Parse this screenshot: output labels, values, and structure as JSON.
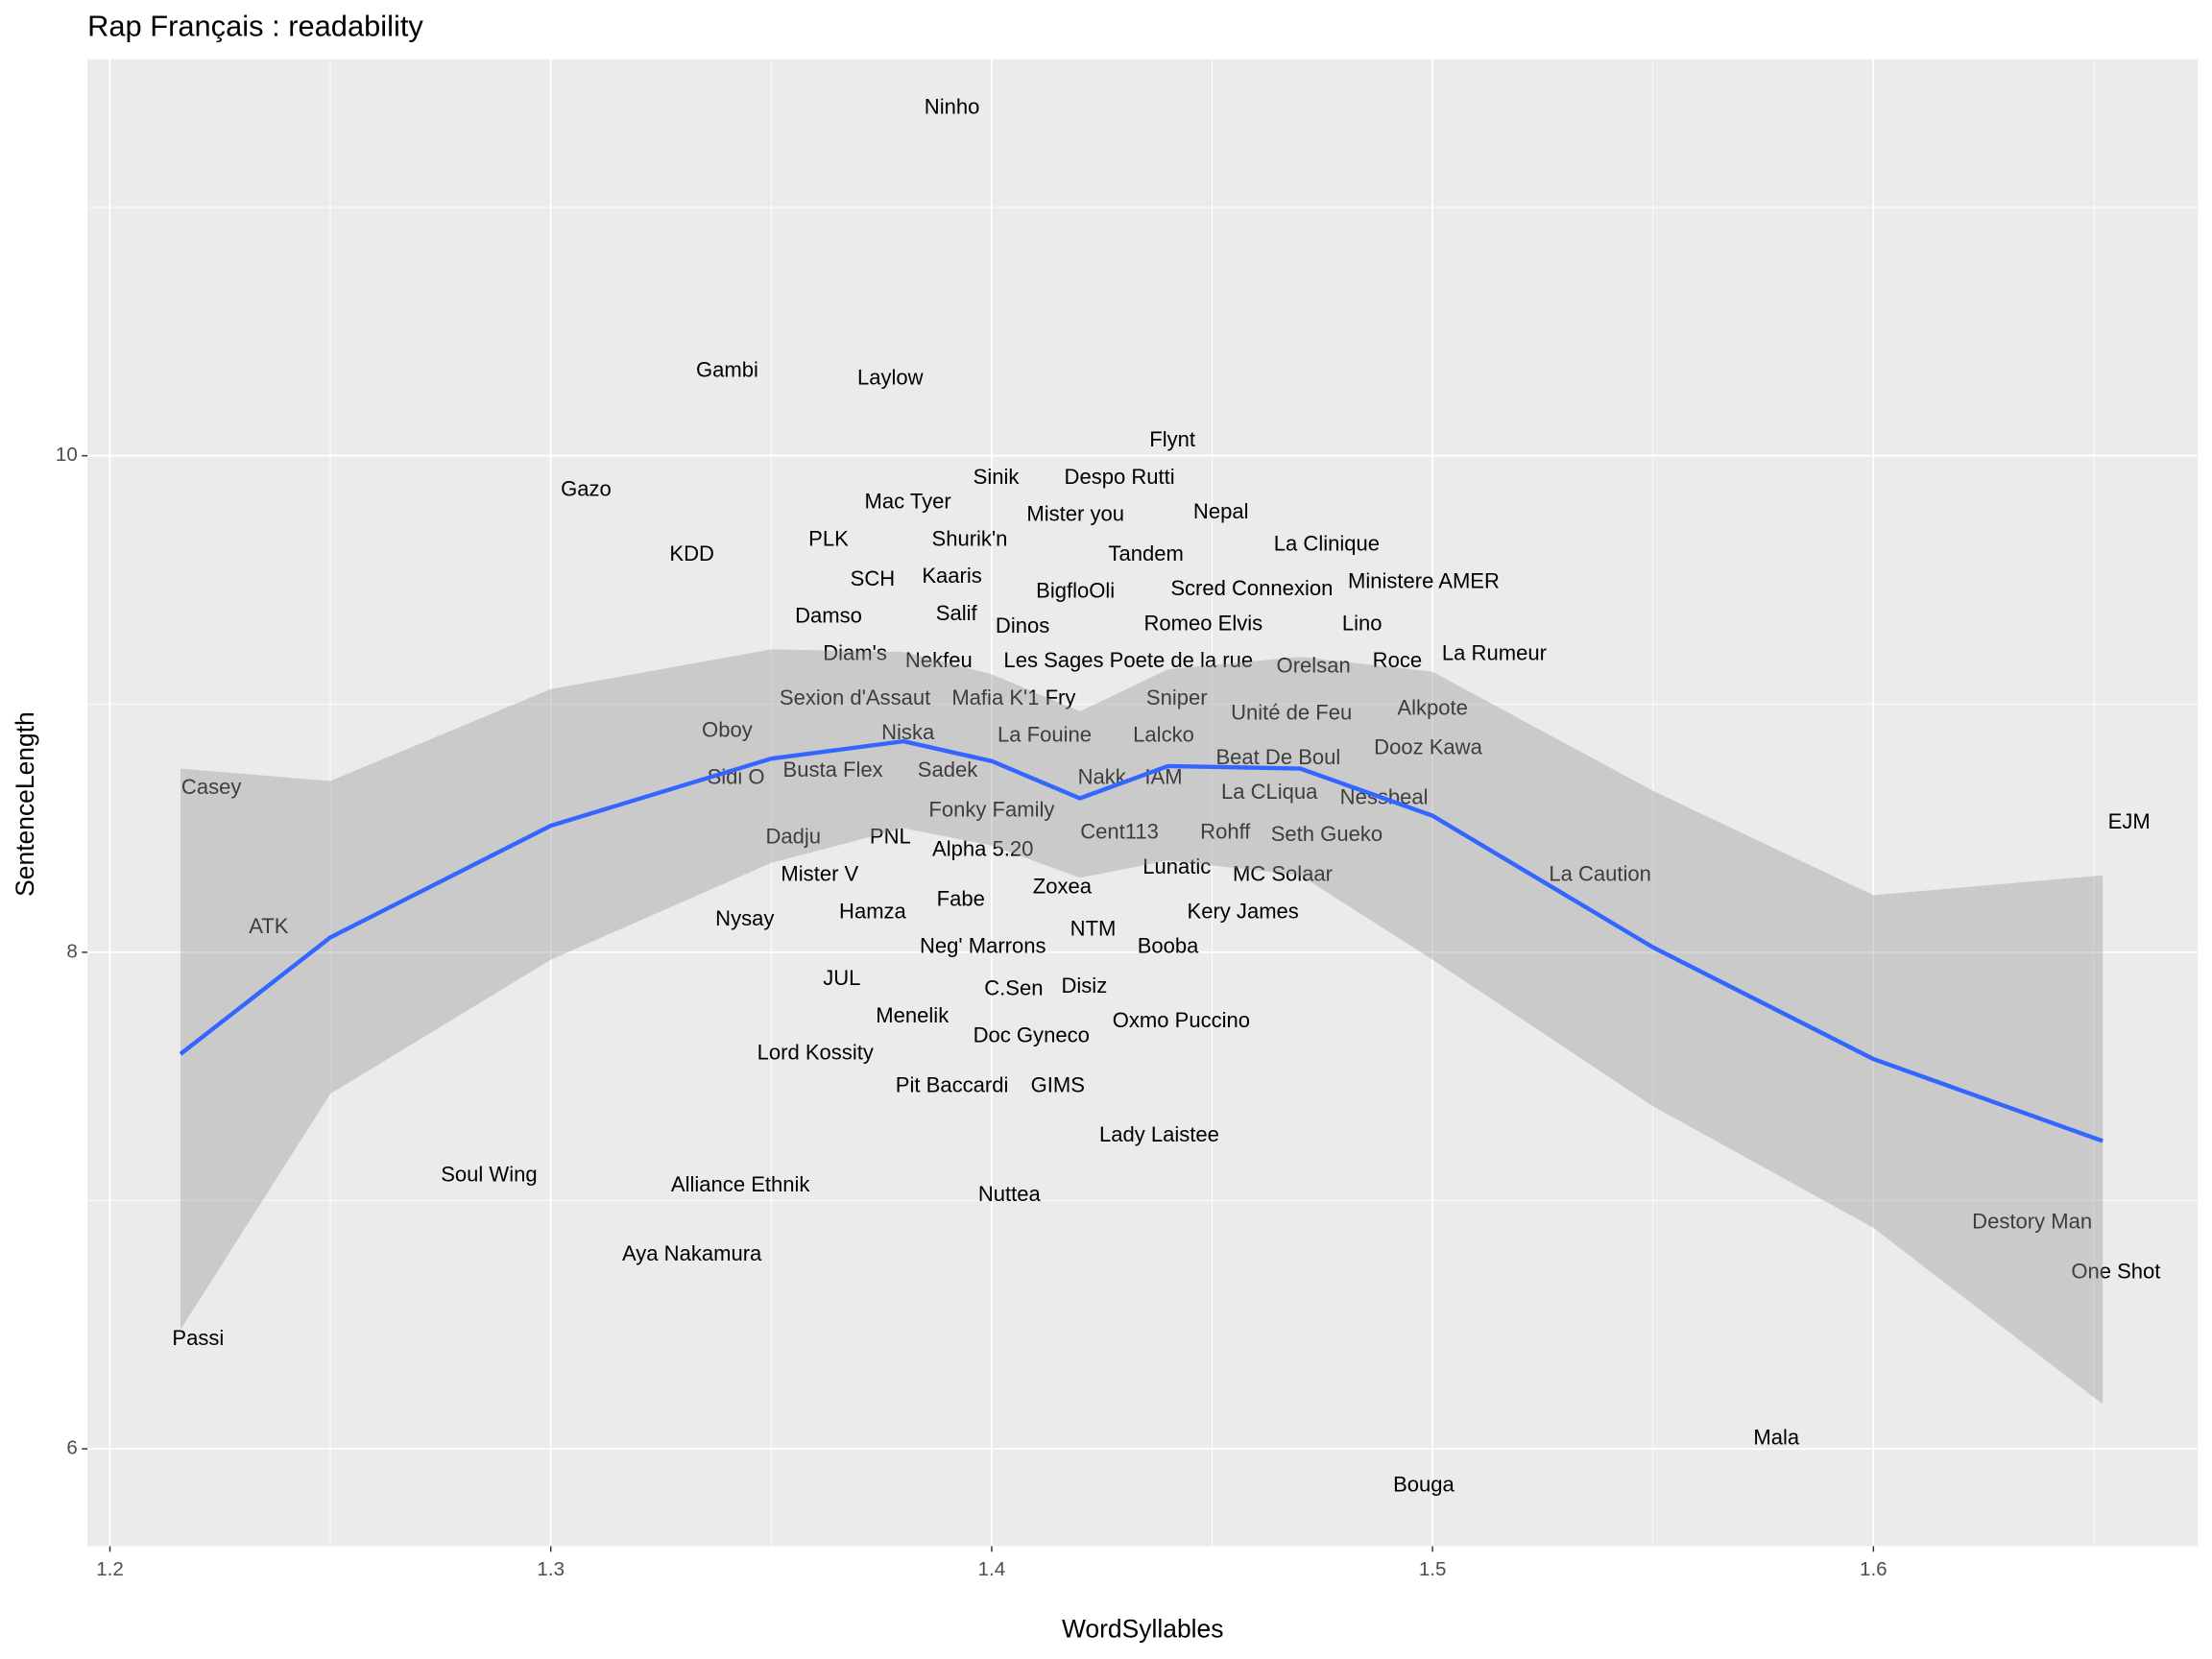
{
  "chart_data": {
    "type": "scatter",
    "title": "Rap Français :  readability",
    "x_label": "WordSyllables",
    "y_label": "SentenceLength",
    "xlim": [
      1.1949,
      1.6736
    ],
    "ylim": [
      5.608,
      11.597
    ],
    "xticks": [
      1.2,
      1.3,
      1.4,
      1.5,
      1.6
    ],
    "yticks": [
      6,
      8,
      10
    ],
    "xminor": [
      1.25,
      1.35,
      1.45,
      1.55,
      1.65
    ],
    "yminor": [
      7,
      9,
      11
    ],
    "grid": true,
    "panel_color": "#ebebeb",
    "text_color": "#000000",
    "labels": [
      "Ninho",
      "Gambi",
      "Laylow",
      "Flynt",
      "Sinik",
      "Despo Rutti",
      "Gazo",
      "Mac Tyer",
      "Mister you",
      "Nepal",
      "Shurik'n",
      "PLK",
      "La Clinique",
      "Tandem",
      "KDD",
      "SCH",
      "Kaaris",
      "Ministere AMER",
      "Scred Connexion",
      "BigfloOli",
      "Damso",
      "Salif",
      "Dinos",
      "Romeo Elvis",
      "Lino",
      "Diam's",
      "Nekfeu",
      "Les Sages Poete de la rue",
      "Orelsan",
      "Roce",
      "La Rumeur",
      "Sexion d'Assaut",
      "Mafia K'1 Fry",
      "Sniper",
      "Unité de Feu",
      "Alkpote",
      "Oboy",
      "Niska",
      "La Fouine",
      "Lalcko",
      "Dooz Kawa",
      "Beat De Boul",
      "Casey",
      "Sidi O",
      "Busta Flex",
      "Sadek",
      "Nakk",
      "IAM",
      "La CLiqua",
      "Nessbeal",
      "Fonky Family",
      "EJM",
      "Dadju",
      "PNL",
      "Cent113",
      "Rohff",
      "Seth Gueko",
      "Alpha 5.20",
      "Lunatic",
      "MC Solaar",
      "La Caution",
      "Mister V",
      "Zoxea",
      "Fabe",
      "Hamza",
      "Kery James",
      "Nysay",
      "ATK",
      "NTM",
      "Neg' Marrons",
      "Booba",
      "JUL",
      "C.Sen",
      "Disiz",
      "Menelik",
      "Oxmo Puccino",
      "Doc Gyneco",
      "Lord Kossity",
      "Pit Baccardi",
      "GIMS",
      "Lady Laistee",
      "Soul Wing",
      "Alliance Ethnik",
      "Nuttea",
      "Aya Nakamura",
      "Destory Man",
      "One Shot",
      "Passi",
      "Mala",
      "Bouga"
    ],
    "x": [
      1.391,
      1.34,
      1.377,
      1.441,
      1.401,
      1.429,
      1.308,
      1.381,
      1.419,
      1.452,
      1.395,
      1.363,
      1.476,
      1.435,
      1.332,
      1.373,
      1.391,
      1.498,
      1.459,
      1.419,
      1.363,
      1.392,
      1.407,
      1.448,
      1.484,
      1.369,
      1.388,
      1.431,
      1.473,
      1.492,
      1.514,
      1.369,
      1.405,
      1.442,
      1.468,
      1.5,
      1.34,
      1.381,
      1.412,
      1.439,
      1.499,
      1.465,
      1.223,
      1.342,
      1.364,
      1.39,
      1.425,
      1.439,
      1.463,
      1.489,
      1.4,
      1.658,
      1.355,
      1.377,
      1.429,
      1.453,
      1.476,
      1.398,
      1.442,
      1.466,
      1.538,
      1.361,
      1.416,
      1.393,
      1.373,
      1.457,
      1.344,
      1.236,
      1.423,
      1.398,
      1.44,
      1.366,
      1.405,
      1.421,
      1.382,
      1.443,
      1.409,
      1.36,
      1.391,
      1.415,
      1.438,
      1.286,
      1.343,
      1.404,
      1.332,
      1.636,
      1.655,
      1.22,
      1.578,
      1.498
    ],
    "y": [
      11.4,
      10.34,
      10.31,
      10.06,
      9.91,
      9.91,
      9.86,
      9.81,
      9.76,
      9.77,
      9.66,
      9.66,
      9.64,
      9.6,
      9.6,
      9.5,
      9.51,
      9.49,
      9.46,
      9.45,
      9.35,
      9.36,
      9.31,
      9.32,
      9.32,
      9.2,
      9.17,
      9.17,
      9.15,
      9.17,
      9.2,
      9.02,
      9.02,
      9.02,
      8.96,
      8.98,
      8.89,
      8.88,
      8.87,
      8.87,
      8.82,
      8.78,
      8.66,
      8.7,
      8.73,
      8.73,
      8.7,
      8.7,
      8.64,
      8.62,
      8.57,
      8.52,
      8.46,
      8.46,
      8.48,
      8.48,
      8.47,
      8.41,
      8.34,
      8.31,
      8.31,
      8.31,
      8.26,
      8.21,
      8.16,
      8.16,
      8.13,
      8.1,
      8.09,
      8.02,
      8.02,
      7.89,
      7.85,
      7.86,
      7.74,
      7.72,
      7.66,
      7.59,
      7.46,
      7.46,
      7.26,
      7.1,
      7.06,
      7.02,
      6.78,
      6.91,
      6.71,
      6.44,
      6.04,
      5.85
    ],
    "smooth": {
      "color": "#3366ff",
      "ribbon_color": "#999999",
      "x": [
        1.216,
        1.25,
        1.3,
        1.35,
        1.38,
        1.4,
        1.42,
        1.44,
        1.47,
        1.5,
        1.55,
        1.6,
        1.652
      ],
      "y": [
        7.59,
        8.06,
        8.51,
        8.78,
        8.85,
        8.77,
        8.62,
        8.75,
        8.74,
        8.55,
        8.02,
        7.57,
        7.24
      ],
      "ymin": [
        6.48,
        7.43,
        7.97,
        8.36,
        8.5,
        8.43,
        8.3,
        8.37,
        8.31,
        7.97,
        7.38,
        6.89,
        6.18
      ],
      "ymax": [
        8.74,
        8.69,
        9.06,
        9.22,
        9.21,
        9.12,
        8.97,
        9.14,
        9.19,
        9.13,
        8.65,
        8.23,
        8.31
      ]
    }
  }
}
